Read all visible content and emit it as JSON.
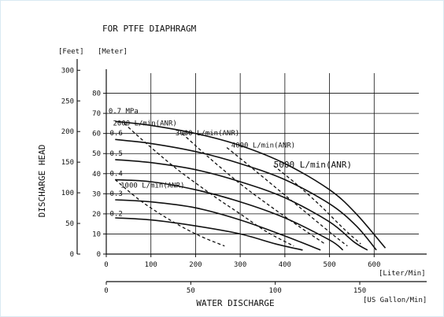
{
  "chart_data": {
    "type": "line",
    "title": "FOR PTFE DIAPHRAGM",
    "xlabel": "WATER  DISCHARGE",
    "ylabel": "DISCHARGE  HEAD",
    "y_unit_left": "[Feet]",
    "y_unit_right": "[Meter]",
    "x_unit_primary": "[Liter/Min]",
    "x_unit_secondary": "[US Gallon/Min]",
    "x_ticks": [
      "0",
      "100",
      "200",
      "300",
      "400",
      "500",
      "600"
    ],
    "x2_ticks": [
      "0",
      "50",
      "100",
      "150"
    ],
    "y_meter_ticks": [
      "0",
      "10",
      "20",
      "30",
      "40",
      "50",
      "60",
      "70",
      "80"
    ],
    "y_feet_ticks": [
      "0",
      "50",
      "100",
      "150",
      "200",
      "250",
      "300"
    ],
    "xlim": [
      0,
      700
    ],
    "ylim_meter": [
      0,
      90
    ],
    "grid": true,
    "pressure_series": [
      {
        "name": "0.7 MPa",
        "x": [
          20,
          100,
          200,
          300,
          400,
          500,
          560,
          625
        ],
        "y": [
          66,
          64,
          60,
          54,
          45,
          32,
          20,
          3
        ]
      },
      {
        "name": "0.6",
        "x": [
          20,
          100,
          200,
          300,
          400,
          500,
          560,
          605
        ],
        "y": [
          57,
          55,
          51,
          45,
          37,
          25,
          14,
          2
        ]
      },
      {
        "name": "0.5",
        "x": [
          20,
          100,
          200,
          300,
          400,
          500,
          555,
          585
        ],
        "y": [
          47,
          45.5,
          42,
          36,
          28,
          16,
          6,
          2
        ]
      },
      {
        "name": "0.4",
        "x": [
          20,
          100,
          200,
          300,
          400,
          500,
          530
        ],
        "y": [
          37,
          36,
          32,
          26,
          18,
          7,
          2
        ]
      },
      {
        "name": "0.3",
        "x": [
          20,
          100,
          200,
          300,
          400,
          480
        ],
        "y": [
          27,
          26,
          23,
          17,
          9,
          2
        ]
      },
      {
        "name": "0.2",
        "x": [
          20,
          100,
          200,
          300,
          380,
          440
        ],
        "y": [
          18,
          17,
          14,
          10,
          5,
          2
        ]
      }
    ],
    "air_series": [
      {
        "name": "1000 L/min(ANR)",
        "x": [
          20,
          80,
          150,
          210,
          265
        ],
        "y": [
          37,
          26,
          16,
          9,
          4
        ]
      },
      {
        "name": "2000 L/min(ANR)",
        "x": [
          40,
          90,
          160,
          240,
          300,
          360,
          420
        ],
        "y": [
          65,
          55,
          42,
          29,
          20,
          11,
          4
        ]
      },
      {
        "name": "3000 L/min(ANR)",
        "x": [
          170,
          230,
          300,
          360,
          430,
          490
        ],
        "y": [
          60,
          48,
          35,
          25,
          14,
          5
        ]
      },
      {
        "name": "4000 L/min(ANR)",
        "x": [
          270,
          320,
          380,
          440,
          500,
          540
        ],
        "y": [
          53,
          44,
          33,
          22,
          11,
          4
        ]
      },
      {
        "name": "5000 L/min(ANR)",
        "x": [
          375,
          425,
          480,
          530,
          570
        ],
        "y": [
          44,
          35,
          24,
          13,
          5
        ]
      }
    ],
    "series_labels": [
      {
        "text": "0.7 MPa",
        "x": 5,
        "y": 70
      },
      {
        "text": "0.6",
        "x": 8,
        "y": 59
      },
      {
        "text": "0.5",
        "x": 8,
        "y": 49
      },
      {
        "text": "0.4",
        "x": 8,
        "y": 39
      },
      {
        "text": "0.3",
        "x": 8,
        "y": 29
      },
      {
        "text": "0.2",
        "x": 8,
        "y": 19
      },
      {
        "text": "2000 L/min(ANR)",
        "x": 15,
        "y": 64
      },
      {
        "text": "3000 L/min(ANR)",
        "x": 155,
        "y": 59
      },
      {
        "text": "4000 L/min(ANR)",
        "x": 280,
        "y": 53
      },
      {
        "text": "5000 L/min(ANR)",
        "x": 375,
        "y": 43
      },
      {
        "text": "1000 L/min(ANR)",
        "x": 32,
        "y": 33
      }
    ]
  }
}
